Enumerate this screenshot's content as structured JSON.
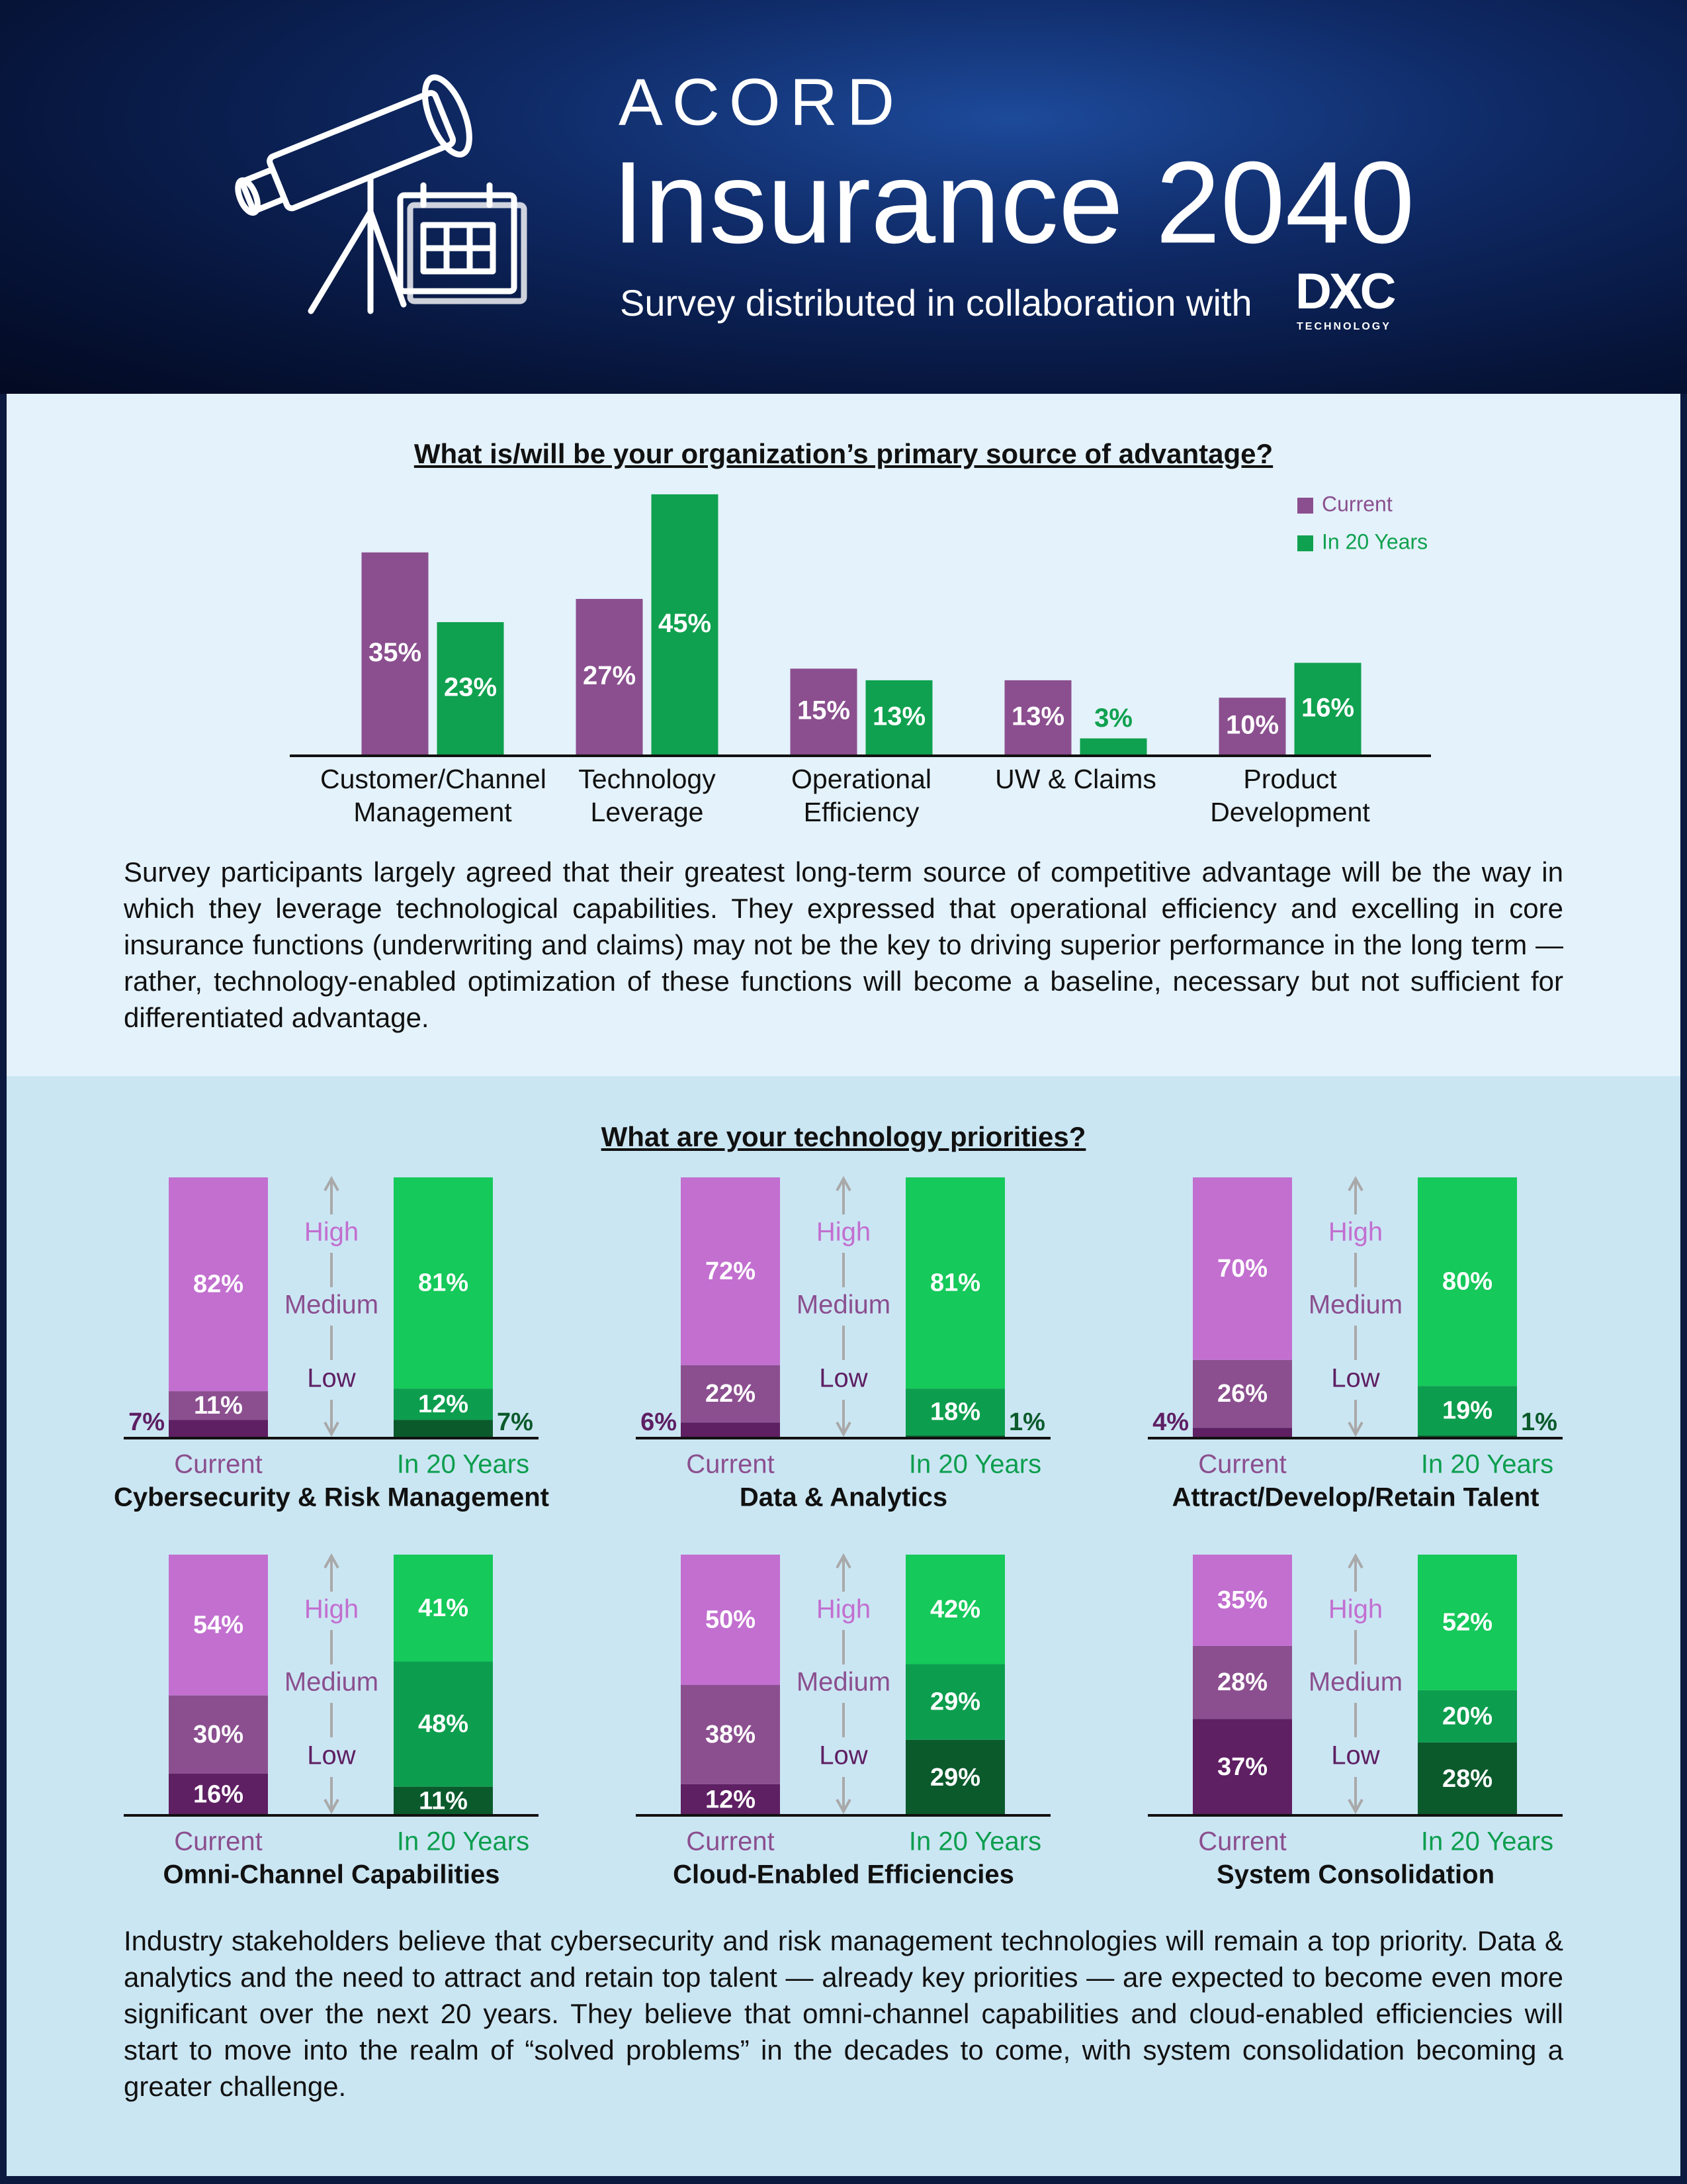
{
  "header": {
    "brand": "ACORD",
    "title": "Insurance 2040",
    "subtitle": "Survey distributed in collaboration with",
    "logo": "DXC",
    "logo_sub": "TECHNOLOGY"
  },
  "intro_text": "Survey participants largely agreed that their greatest long-term source of competitive advantage will be the way in which they leverage technological capabilities. They expressed that operational efficiency and excelling in core insurance functions (underwriting and claims) may not be the key to driving superior performance in the long term — rather, technology-enabled optimization of these functions will become a baseline, necessary but not sufficient for differentiated advantage.",
  "section_title": "What are your technology priorities?",
  "summary_text": "Industry stakeholders believe that cybersecurity and risk management technologies will remain a top priority. Data & analytics and the need to attract and retain top talent — already key priorities — are expected to become even more significant over the next 20 years. They believe that omni-channel capabilities and cloud-enabled efficiencies will start to move into the realm of “solved problems” in the decades to come, with system consolidation becoming a greater challenge.",
  "chart_data": [
    {
      "type": "bar",
      "title": "What is/will be your organization’s primary source of advantage?",
      "categories": [
        "Customer/Channel Management",
        "Technology Leverage",
        "Operational Efficiency",
        "UW & Claims",
        "Product Development"
      ],
      "series": [
        {
          "name": "Current",
          "color": "#8b4f8f",
          "values": [
            35,
            27,
            15,
            13,
            10
          ],
          "value_labels": [
            "35%",
            "27%",
            "15%",
            "13%",
            "10%"
          ]
        },
        {
          "name": "In 20 Years",
          "color": "#0fa14f",
          "values": [
            23,
            45,
            13,
            3,
            16
          ],
          "value_labels": [
            "23%",
            "45%",
            "13%",
            "3%",
            "16%"
          ]
        }
      ],
      "legend": "top-right"
    },
    {
      "type": "stacked_bar",
      "title": "Cybersecurity & Risk Management",
      "categories": [
        "Current",
        "In 20 Years"
      ],
      "series": [
        {
          "name": "High",
          "colors": [
            "#c26fd0",
            "#15c95a"
          ],
          "values": [
            82,
            81
          ],
          "value_labels": [
            "82%",
            "81%"
          ]
        },
        {
          "name": "Medium",
          "colors": [
            "#8b4f8f",
            "#0c9e4e"
          ],
          "values": [
            11,
            12
          ],
          "value_labels": [
            "11%",
            "12%"
          ]
        },
        {
          "name": "Low",
          "colors": [
            "#5e1f63",
            "#0b5a2c"
          ],
          "values": [
            7,
            7
          ],
          "value_labels": [
            "7%",
            "7%"
          ]
        }
      ]
    },
    {
      "type": "stacked_bar",
      "title": "Data & Analytics",
      "categories": [
        "Current",
        "In 20 Years"
      ],
      "series": [
        {
          "name": "High",
          "colors": [
            "#c26fd0",
            "#15c95a"
          ],
          "values": [
            72,
            81
          ],
          "value_labels": [
            "72%",
            "81%"
          ]
        },
        {
          "name": "Medium",
          "colors": [
            "#8b4f8f",
            "#0c9e4e"
          ],
          "values": [
            22,
            18
          ],
          "value_labels": [
            "22%",
            "18%"
          ]
        },
        {
          "name": "Low",
          "colors": [
            "#5e1f63",
            "#0b5a2c"
          ],
          "values": [
            6,
            1
          ],
          "value_labels": [
            "6%",
            "1%"
          ]
        }
      ]
    },
    {
      "type": "stacked_bar",
      "title": "Attract/Develop/Retain Talent",
      "categories": [
        "Current",
        "In 20 Years"
      ],
      "series": [
        {
          "name": "High",
          "colors": [
            "#c26fd0",
            "#15c95a"
          ],
          "values": [
            70,
            80
          ],
          "value_labels": [
            "70%",
            "80%"
          ]
        },
        {
          "name": "Medium",
          "colors": [
            "#8b4f8f",
            "#0c9e4e"
          ],
          "values": [
            26,
            19
          ],
          "value_labels": [
            "26%",
            "19%"
          ]
        },
        {
          "name": "Low",
          "colors": [
            "#5e1f63",
            "#0b5a2c"
          ],
          "values": [
            4,
            1
          ],
          "value_labels": [
            "4%",
            "1%"
          ]
        }
      ]
    },
    {
      "type": "stacked_bar",
      "title": "Omni-Channel Capabilities",
      "categories": [
        "Current",
        "In 20 Years"
      ],
      "series": [
        {
          "name": "High",
          "colors": [
            "#c26fd0",
            "#15c95a"
          ],
          "values": [
            54,
            41
          ],
          "value_labels": [
            "54%",
            "41%"
          ]
        },
        {
          "name": "Medium",
          "colors": [
            "#8b4f8f",
            "#0c9e4e"
          ],
          "values": [
            30,
            48
          ],
          "value_labels": [
            "30%",
            "48%"
          ]
        },
        {
          "name": "Low",
          "colors": [
            "#5e1f63",
            "#0b5a2c"
          ],
          "values": [
            16,
            11
          ],
          "value_labels": [
            "16%",
            "11%"
          ]
        }
      ]
    },
    {
      "type": "stacked_bar",
      "title": "Cloud-Enabled Efficiencies",
      "categories": [
        "Current",
        "In 20 Years"
      ],
      "series": [
        {
          "name": "High",
          "colors": [
            "#c26fd0",
            "#15c95a"
          ],
          "values": [
            50,
            42
          ],
          "value_labels": [
            "50%",
            "42%"
          ]
        },
        {
          "name": "Medium",
          "colors": [
            "#8b4f8f",
            "#0c9e4e"
          ],
          "values": [
            38,
            29
          ],
          "value_labels": [
            "38%",
            "29%"
          ]
        },
        {
          "name": "Low",
          "colors": [
            "#5e1f63",
            "#0b5a2c"
          ],
          "values": [
            12,
            29
          ],
          "value_labels": [
            "12%",
            "29%"
          ]
        }
      ]
    },
    {
      "type": "stacked_bar",
      "title": "System Consolidation",
      "categories": [
        "Current",
        "In 20 Years"
      ],
      "series": [
        {
          "name": "High",
          "colors": [
            "#c26fd0",
            "#15c95a"
          ],
          "values": [
            35,
            52
          ],
          "value_labels": [
            "35%",
            "52%"
          ]
        },
        {
          "name": "Medium",
          "colors": [
            "#8b4f8f",
            "#0c9e4e"
          ],
          "values": [
            28,
            20
          ],
          "value_labels": [
            "28%",
            "20%"
          ]
        },
        {
          "name": "Low",
          "colors": [
            "#5e1f63",
            "#0b5a2c"
          ],
          "values": [
            37,
            28
          ],
          "value_labels": [
            "37%",
            "28%"
          ]
        }
      ]
    }
  ]
}
